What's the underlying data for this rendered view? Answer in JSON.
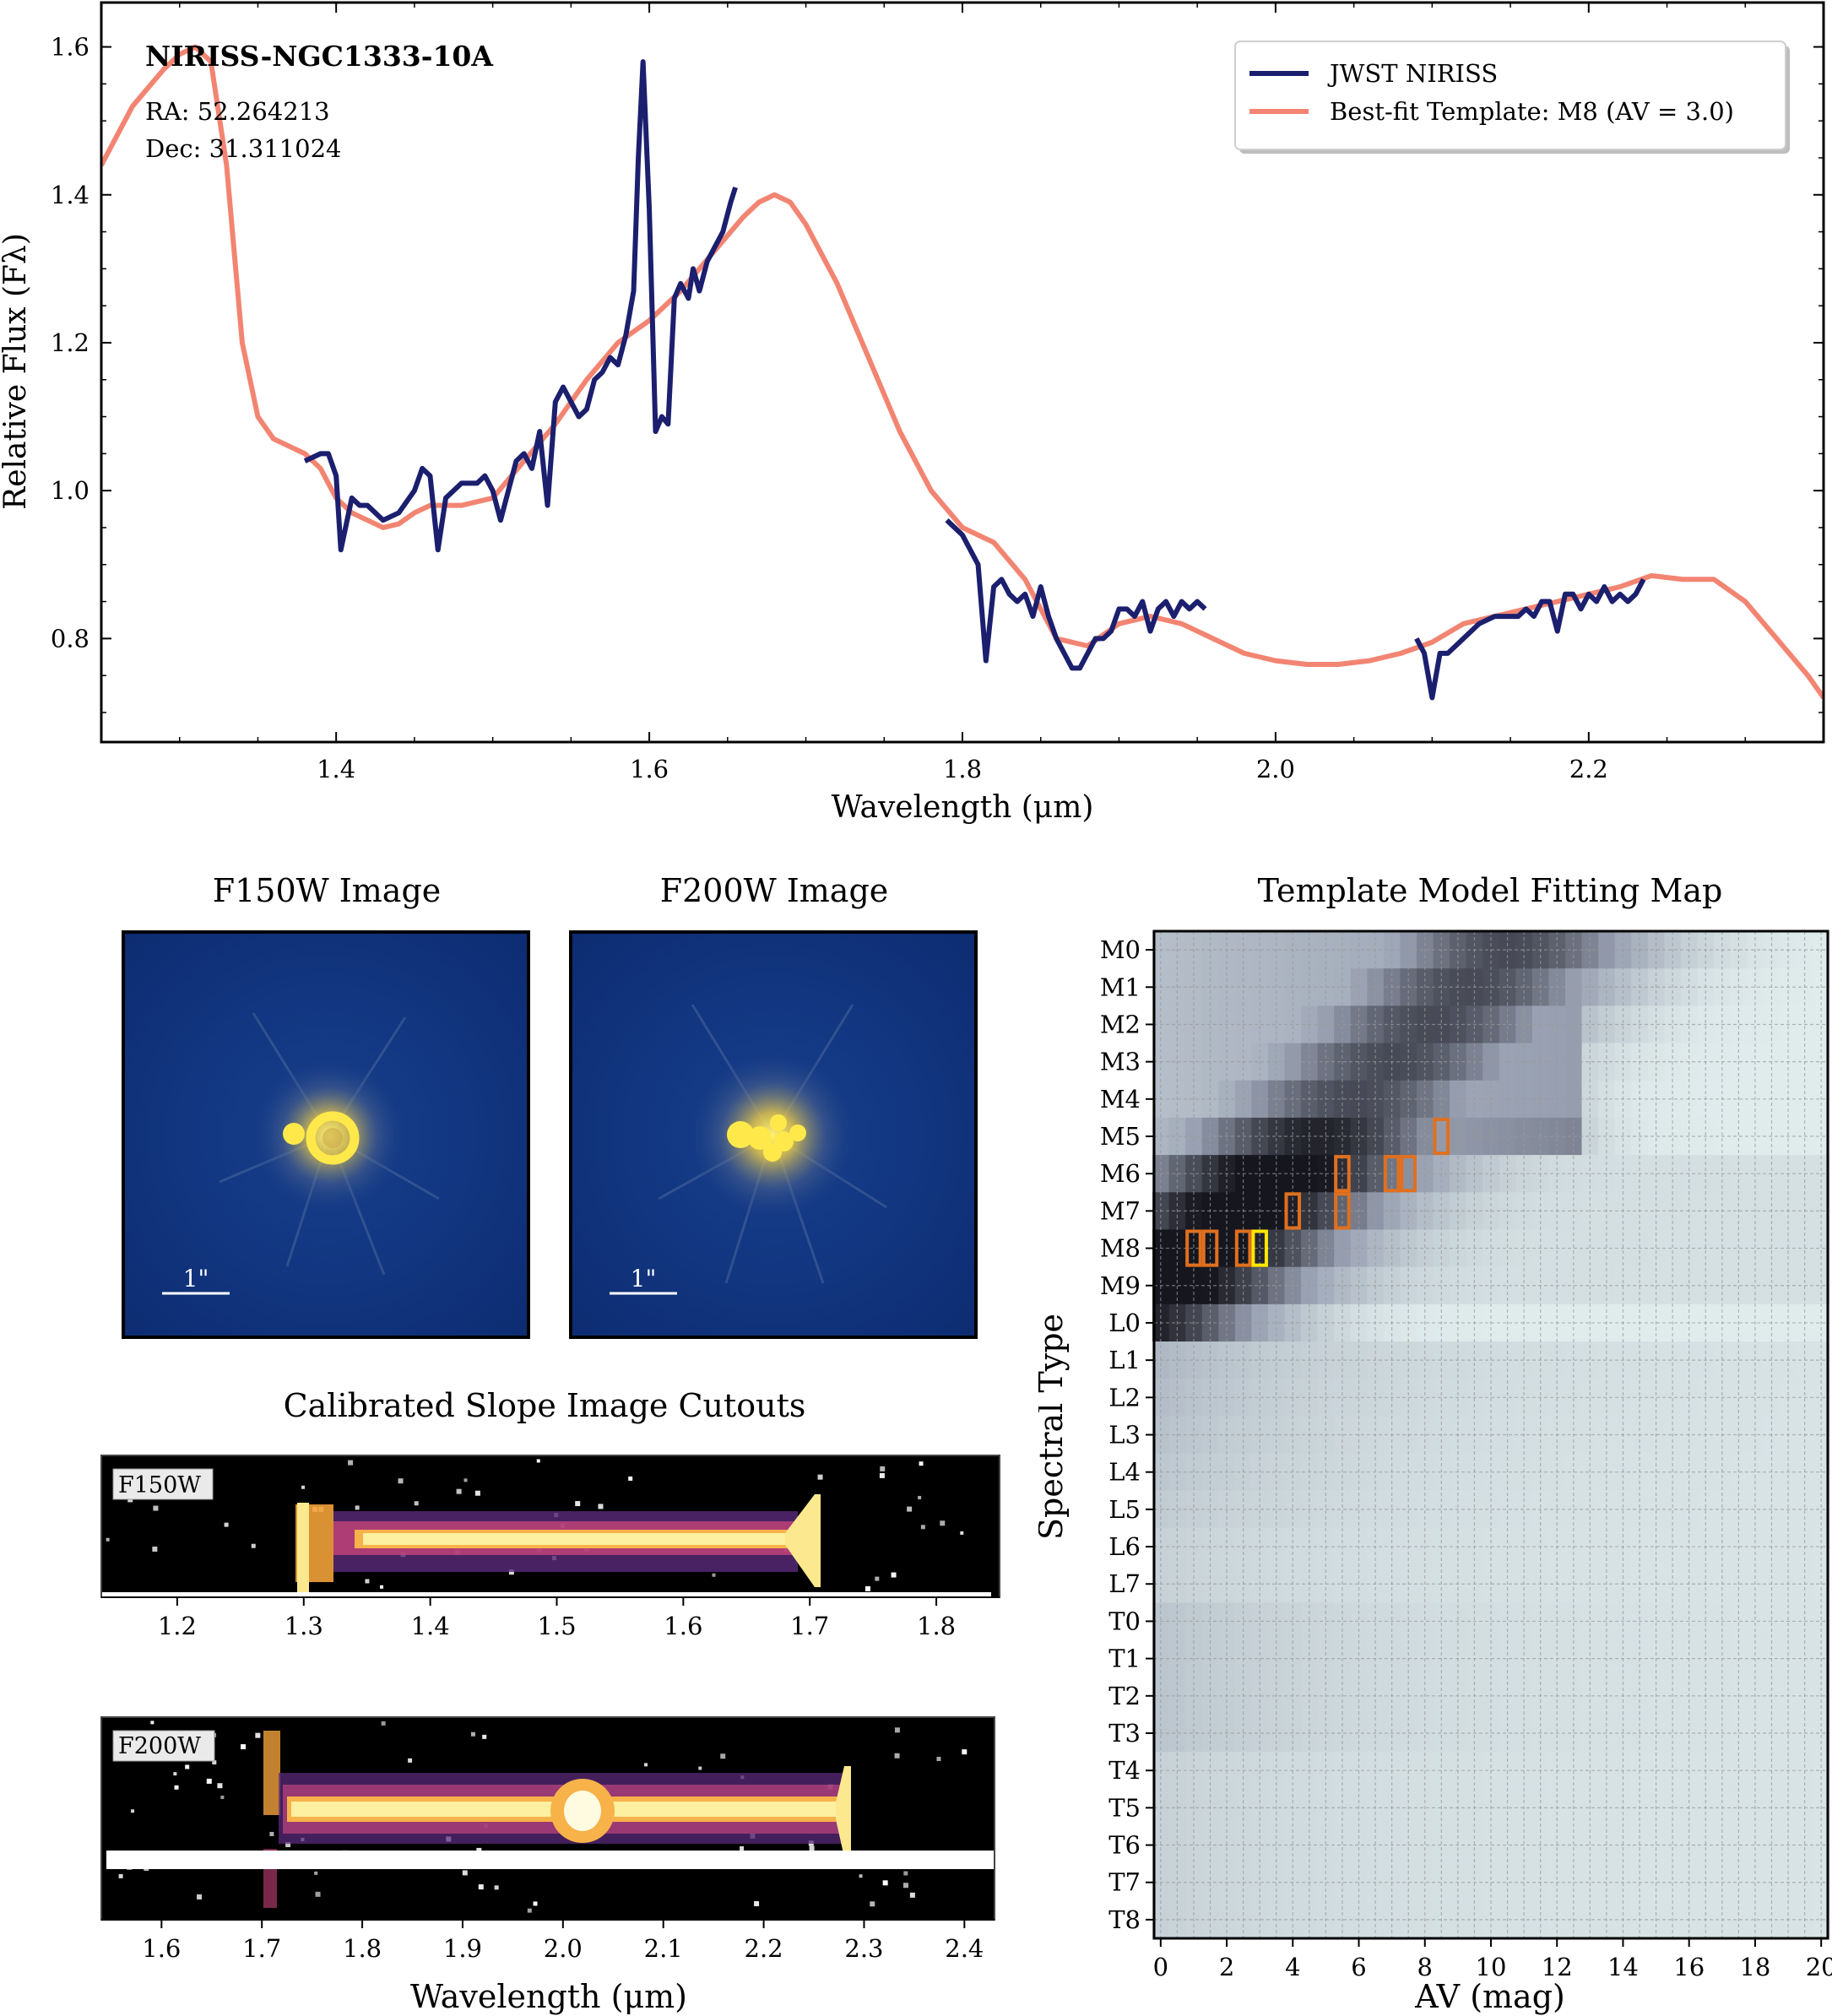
{
  "spectrum": {
    "object_name": "NIRISS-NGC1333-10A",
    "ra_label": "RA: 52.264213",
    "dec_label": "Dec: 31.311024",
    "xlabel": "Wavelength (μm)",
    "ylabel": "Relative Flux (Fλ)",
    "legend": [
      "JWST NIRISS",
      "Best-fit Template: M8 (AV = 3.0)"
    ]
  },
  "images": {
    "f150w_title": "F150W Image",
    "f200w_title": "F200W Image",
    "scale_label": "1\""
  },
  "cutouts": {
    "title": "Calibrated Slope Image Cutouts",
    "f150w_label": "F150W",
    "f200w_label": "F200W",
    "xlabel": "Wavelength (μm)"
  },
  "fitmap": {
    "title": "Template Model Fitting Map",
    "xlabel": "AV (mag)",
    "ylabel": "Spectral Type"
  },
  "colors": {
    "niriss": "#1b1f6e",
    "template": "#f28572",
    "image_bg": "#11317c",
    "box_orange": "#e0701f",
    "box_yellow": "#ffe800"
  },
  "chart_data": [
    {
      "type": "line",
      "title": "NIRISS-NGC1333-10A",
      "xlabel": "Wavelength (μm)",
      "ylabel": "Relative Flux (Fλ)",
      "xlim": [
        1.25,
        2.35
      ],
      "ylim": [
        0.66,
        1.66
      ],
      "xticks": [
        1.4,
        1.6,
        1.8,
        2.0,
        2.2
      ],
      "yticks": [
        0.8,
        1.0,
        1.2,
        1.4,
        1.6
      ],
      "series": [
        {
          "name": "JWST NIRISS",
          "segments": [
            [
              [
                1.38,
                1.04
              ],
              [
                1.39,
                1.05
              ],
              [
                1.395,
                1.05
              ],
              [
                1.4,
                1.02
              ],
              [
                1.403,
                0.92
              ],
              [
                1.41,
                0.99
              ],
              [
                1.415,
                0.98
              ],
              [
                1.42,
                0.98
              ],
              [
                1.43,
                0.96
              ],
              [
                1.44,
                0.97
              ],
              [
                1.45,
                1.0
              ],
              [
                1.455,
                1.03
              ],
              [
                1.46,
                1.02
              ],
              [
                1.465,
                0.92
              ],
              [
                1.47,
                0.99
              ],
              [
                1.48,
                1.01
              ],
              [
                1.49,
                1.01
              ],
              [
                1.495,
                1.02
              ],
              [
                1.5,
                1.0
              ],
              [
                1.505,
                0.96
              ],
              [
                1.51,
                1.0
              ],
              [
                1.515,
                1.04
              ],
              [
                1.52,
                1.05
              ],
              [
                1.525,
                1.03
              ],
              [
                1.53,
                1.08
              ],
              [
                1.535,
                0.98
              ],
              [
                1.54,
                1.12
              ],
              [
                1.545,
                1.14
              ],
              [
                1.55,
                1.12
              ],
              [
                1.555,
                1.1
              ],
              [
                1.56,
                1.11
              ],
              [
                1.565,
                1.15
              ],
              [
                1.57,
                1.16
              ],
              [
                1.575,
                1.18
              ],
              [
                1.58,
                1.17
              ],
              [
                1.585,
                1.21
              ],
              [
                1.59,
                1.27
              ],
              [
                1.593,
                1.45
              ],
              [
                1.596,
                1.58
              ],
              [
                1.6,
                1.38
              ],
              [
                1.604,
                1.08
              ],
              [
                1.608,
                1.1
              ],
              [
                1.612,
                1.09
              ],
              [
                1.616,
                1.26
              ],
              [
                1.62,
                1.28
              ],
              [
                1.625,
                1.26
              ],
              [
                1.628,
                1.3
              ],
              [
                1.632,
                1.27
              ],
              [
                1.637,
                1.31
              ],
              [
                1.642,
                1.33
              ],
              [
                1.647,
                1.35
              ],
              [
                1.652,
                1.39
              ],
              [
                1.655,
                1.41
              ]
            ],
            [
              [
                1.79,
                0.96
              ],
              [
                1.8,
                0.94
              ],
              [
                1.805,
                0.92
              ],
              [
                1.81,
                0.9
              ],
              [
                1.815,
                0.77
              ],
              [
                1.82,
                0.87
              ],
              [
                1.825,
                0.88
              ],
              [
                1.83,
                0.86
              ],
              [
                1.835,
                0.85
              ],
              [
                1.84,
                0.86
              ],
              [
                1.845,
                0.83
              ],
              [
                1.85,
                0.87
              ],
              [
                1.855,
                0.83
              ],
              [
                1.86,
                0.8
              ],
              [
                1.865,
                0.78
              ],
              [
                1.87,
                0.76
              ],
              [
                1.875,
                0.76
              ],
              [
                1.88,
                0.78
              ],
              [
                1.885,
                0.8
              ],
              [
                1.89,
                0.8
              ],
              [
                1.895,
                0.81
              ],
              [
                1.9,
                0.84
              ],
              [
                1.905,
                0.84
              ],
              [
                1.91,
                0.83
              ],
              [
                1.915,
                0.85
              ],
              [
                1.92,
                0.81
              ],
              [
                1.925,
                0.84
              ],
              [
                1.93,
                0.85
              ],
              [
                1.935,
                0.83
              ],
              [
                1.94,
                0.85
              ],
              [
                1.945,
                0.84
              ],
              [
                1.95,
                0.85
              ],
              [
                1.955,
                0.84
              ]
            ],
            [
              [
                2.09,
                0.8
              ],
              [
                2.095,
                0.78
              ],
              [
                2.1,
                0.72
              ],
              [
                2.105,
                0.78
              ],
              [
                2.11,
                0.78
              ],
              [
                2.115,
                0.79
              ],
              [
                2.12,
                0.8
              ],
              [
                2.13,
                0.82
              ],
              [
                2.14,
                0.83
              ],
              [
                2.15,
                0.83
              ],
              [
                2.155,
                0.83
              ],
              [
                2.16,
                0.84
              ],
              [
                2.165,
                0.83
              ],
              [
                2.17,
                0.85
              ],
              [
                2.175,
                0.85
              ],
              [
                2.18,
                0.81
              ],
              [
                2.185,
                0.86
              ],
              [
                2.19,
                0.86
              ],
              [
                2.195,
                0.84
              ],
              [
                2.2,
                0.86
              ],
              [
                2.205,
                0.85
              ],
              [
                2.21,
                0.87
              ],
              [
                2.215,
                0.85
              ],
              [
                2.22,
                0.86
              ],
              [
                2.225,
                0.85
              ],
              [
                2.23,
                0.86
              ],
              [
                2.235,
                0.88
              ]
            ]
          ]
        },
        {
          "name": "Best-fit Template: M8 (AV = 3.0)",
          "x": [
            1.25,
            1.27,
            1.29,
            1.3,
            1.31,
            1.32,
            1.33,
            1.34,
            1.35,
            1.36,
            1.38,
            1.39,
            1.4,
            1.41,
            1.42,
            1.43,
            1.44,
            1.45,
            1.46,
            1.47,
            1.48,
            1.5,
            1.52,
            1.54,
            1.56,
            1.58,
            1.6,
            1.62,
            1.64,
            1.66,
            1.67,
            1.68,
            1.69,
            1.7,
            1.72,
            1.74,
            1.76,
            1.78,
            1.8,
            1.82,
            1.84,
            1.86,
            1.88,
            1.9,
            1.92,
            1.94,
            1.96,
            1.98,
            2.0,
            2.02,
            2.04,
            2.06,
            2.08,
            2.1,
            2.12,
            2.14,
            2.16,
            2.18,
            2.2,
            2.22,
            2.24,
            2.26,
            2.28,
            2.3,
            2.32,
            2.34,
            2.35
          ],
          "y": [
            1.44,
            1.52,
            1.57,
            1.59,
            1.6,
            1.58,
            1.44,
            1.2,
            1.1,
            1.07,
            1.05,
            1.03,
            0.99,
            0.97,
            0.96,
            0.95,
            0.955,
            0.97,
            0.98,
            0.98,
            0.98,
            0.99,
            1.04,
            1.09,
            1.15,
            1.2,
            1.23,
            1.27,
            1.32,
            1.37,
            1.39,
            1.4,
            1.39,
            1.36,
            1.28,
            1.18,
            1.08,
            1.0,
            0.95,
            0.93,
            0.88,
            0.8,
            0.79,
            0.82,
            0.83,
            0.82,
            0.8,
            0.78,
            0.77,
            0.765,
            0.765,
            0.77,
            0.78,
            0.795,
            0.82,
            0.83,
            0.84,
            0.85,
            0.86,
            0.87,
            0.885,
            0.88,
            0.88,
            0.85,
            0.8,
            0.75,
            0.72
          ]
        }
      ]
    },
    {
      "type": "heatmap",
      "title": "Template Model Fitting Map",
      "xlabel": "AV (mag)",
      "ylabel": "Spectral Type",
      "xlim": [
        -0.2,
        20.2
      ],
      "xticks": [
        0,
        2,
        4,
        6,
        8,
        10,
        12,
        14,
        16,
        18,
        20
      ],
      "yticks": [
        "M0",
        "M1",
        "M2",
        "M3",
        "M4",
        "M5",
        "M6",
        "M7",
        "M8",
        "M9",
        "L0",
        "L1",
        "L2",
        "L3",
        "L4",
        "L5",
        "L6",
        "L7",
        "T0",
        "T1",
        "T2",
        "T3",
        "T4",
        "T5",
        "T6",
        "T7",
        "T8"
      ],
      "best_fit": {
        "spectral_type": "M8",
        "av": 3.0
      },
      "good_fits": [
        {
          "spectral_type": "M5",
          "av": 8.5
        },
        {
          "spectral_type": "M6",
          "av": 5.5
        },
        {
          "spectral_type": "M6",
          "av": 7.0
        },
        {
          "spectral_type": "M6",
          "av": 7.5
        },
        {
          "spectral_type": "M7",
          "av": 4.0
        },
        {
          "spectral_type": "M7",
          "av": 5.5
        },
        {
          "spectral_type": "M8",
          "av": 1.0
        },
        {
          "spectral_type": "M8",
          "av": 1.5
        },
        {
          "spectral_type": "M8",
          "av": 2.5
        }
      ]
    },
    {
      "type": "image",
      "title": "Calibrated Slope Image Cutouts",
      "panels": [
        {
          "label": "F150W",
          "xlim": [
            1.14,
            1.85
          ],
          "xticks": [
            1.2,
            1.3,
            1.4,
            1.5,
            1.6,
            1.7,
            1.8
          ],
          "trace_range": [
            1.29,
            1.71
          ]
        },
        {
          "label": "F200W",
          "xlim": [
            1.54,
            2.43
          ],
          "xticks": [
            1.6,
            1.7,
            1.8,
            1.9,
            2.0,
            2.1,
            2.2,
            2.3,
            2.4
          ],
          "trace_range": [
            1.7,
            2.27
          ]
        }
      ]
    }
  ]
}
